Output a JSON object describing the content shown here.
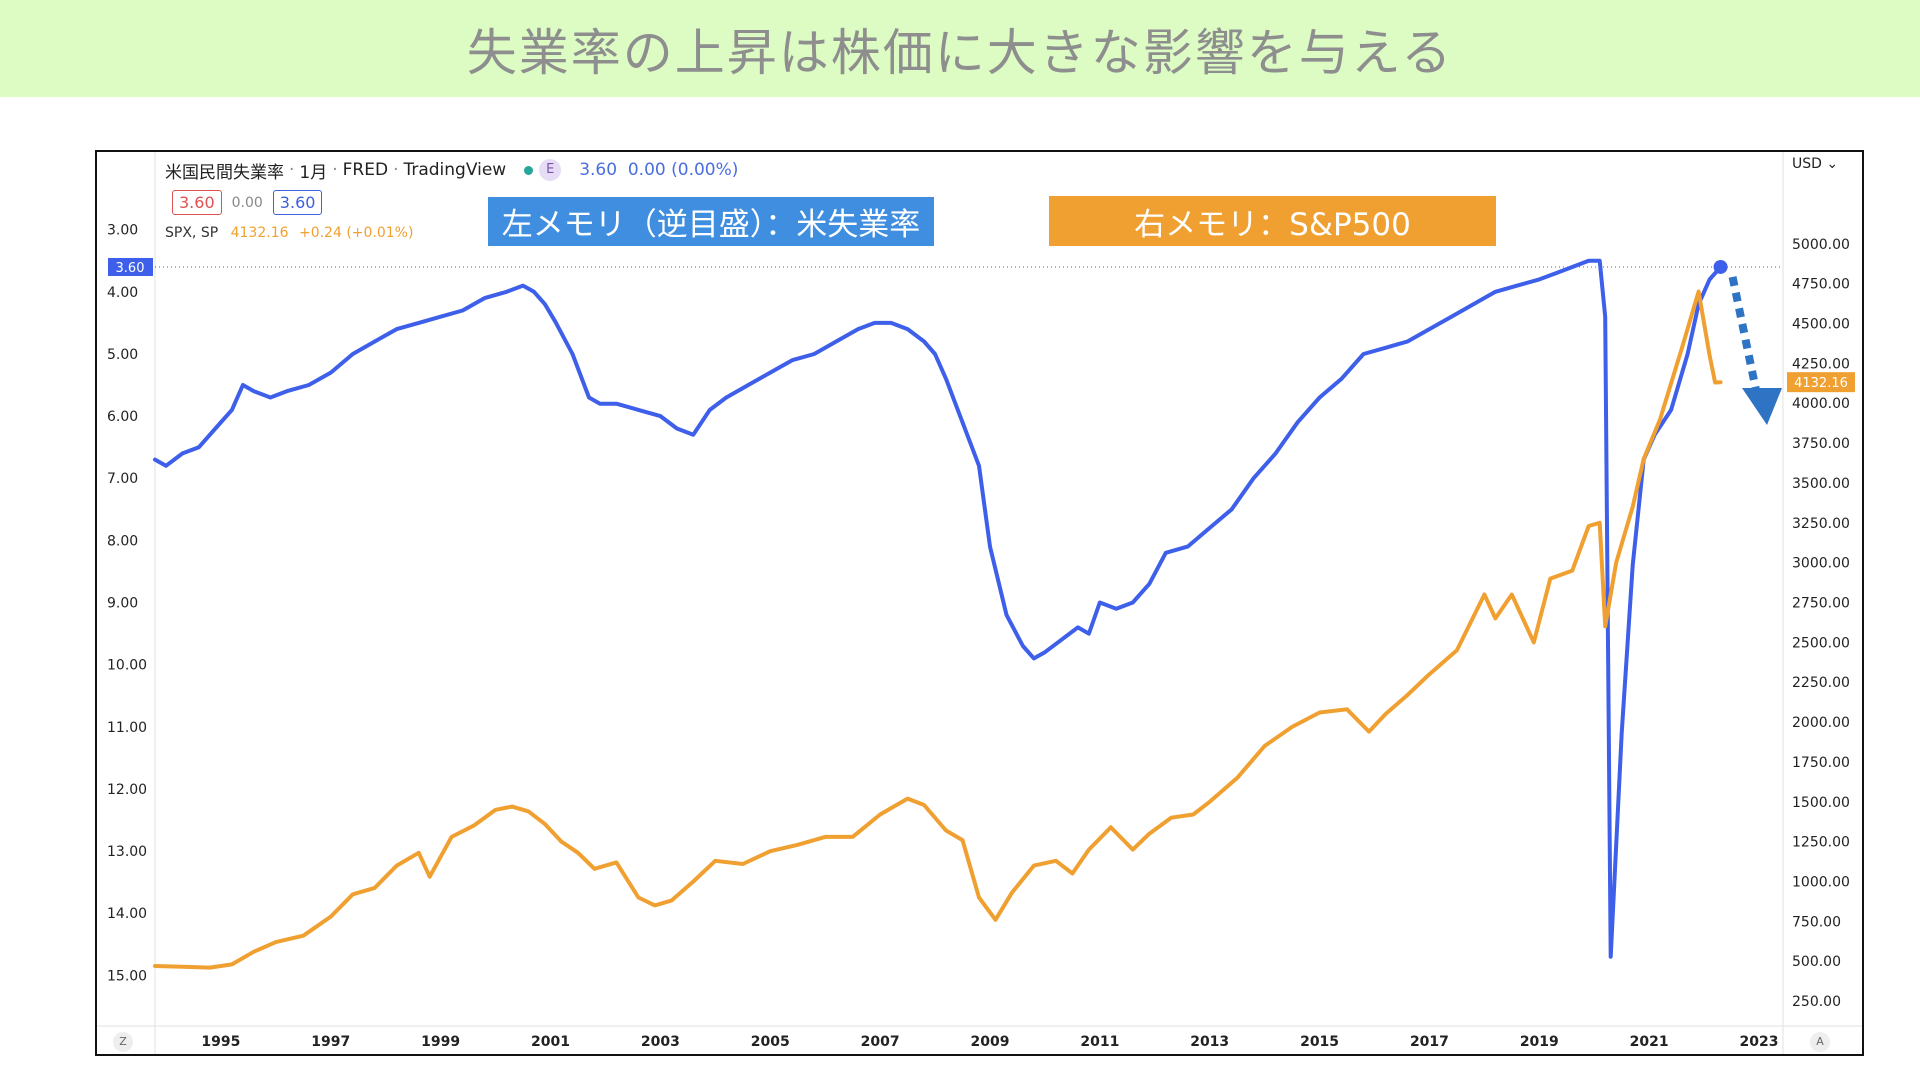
{
  "banner": {
    "title": "失業率の上昇は株価に大きな影響を与える"
  },
  "header": {
    "symbol_name": "米国民間失業率",
    "interval": "1月",
    "source": "FRED",
    "platform": "TradingView",
    "badge": "E",
    "value": "3.60",
    "change": "0.00 (0.00%)",
    "box_red": "3.60",
    "box_mid": "0.00",
    "box_blue": "3.60"
  },
  "spx": {
    "symbol": "SPX, SP",
    "price": "4132.16",
    "change": "+0.24 (+0.01%)"
  },
  "memos": {
    "left": "左メモリ（逆目盛）：米失業率",
    "right": "右メモリ：S&P500"
  },
  "axis": {
    "currency": "USD",
    "corner_left": "Z",
    "corner_right": "A"
  },
  "colors": {
    "unemployment": "#3d5fe9",
    "spx": "#f0a030",
    "arrow": "#2f73c4",
    "banner": "#dcfcc4"
  },
  "chart_data": {
    "type": "line",
    "x_ticks": [
      "1995",
      "1997",
      "1999",
      "2001",
      "2003",
      "2005",
      "2007",
      "2009",
      "2011",
      "2013",
      "2015",
      "2017",
      "2019",
      "2021",
      "2023"
    ],
    "xlim": [
      1993.8,
      2023.4
    ],
    "left_axis": {
      "inverted": true,
      "ylim": [
        2.2,
        15.8
      ],
      "ticks": [
        "3.00",
        "4.00",
        "5.00",
        "6.00",
        "7.00",
        "8.00",
        "9.00",
        "10.00",
        "11.00",
        "12.00",
        "13.00",
        "14.00",
        "15.00"
      ],
      "last_value_label": "3.60"
    },
    "right_axis": {
      "ylim": [
        100,
        5400
      ],
      "ticks": [
        "250.00",
        "500.00",
        "750.00",
        "1000.00",
        "1250.00",
        "1500.00",
        "1750.00",
        "2000.00",
        "2250.00",
        "2500.00",
        "2750.00",
        "3000.00",
        "3250.00",
        "3500.00",
        "3750.00",
        "4000.00",
        "4250.00",
        "4500.00",
        "4750.00",
        "5000.00"
      ],
      "last_value_label": "4132.16"
    },
    "grid": false,
    "series": [
      {
        "name": "米国民間失業率",
        "axis": "left",
        "x": [
          1993.8,
          1994.0,
          1994.3,
          1994.6,
          1994.9,
          1995.2,
          1995.4,
          1995.6,
          1995.9,
          1996.2,
          1996.6,
          1997.0,
          1997.4,
          1997.8,
          1998.2,
          1998.6,
          1999.0,
          1999.4,
          1999.8,
          2000.2,
          2000.5,
          2000.7,
          2000.9,
          2001.1,
          2001.4,
          2001.7,
          2001.9,
          2002.2,
          2002.6,
          2003.0,
          2003.3,
          2003.6,
          2003.9,
          2004.2,
          2004.6,
          2005.0,
          2005.4,
          2005.8,
          2006.2,
          2006.6,
          2006.9,
          2007.2,
          2007.5,
          2007.8,
          2008.0,
          2008.2,
          2008.5,
          2008.8,
          2009.0,
          2009.3,
          2009.6,
          2009.8,
          2010.0,
          2010.3,
          2010.6,
          2010.8,
          2011.0,
          2011.3,
          2011.6,
          2011.9,
          2012.2,
          2012.6,
          2013.0,
          2013.4,
          2013.8,
          2014.2,
          2014.6,
          2015.0,
          2015.4,
          2015.8,
          2016.2,
          2016.6,
          2017.0,
          2017.4,
          2017.8,
          2018.2,
          2018.6,
          2019.0,
          2019.3,
          2019.6,
          2019.9,
          2020.1,
          2020.2,
          2020.3,
          2020.5,
          2020.7,
          2020.9,
          2021.1,
          2021.4,
          2021.7,
          2021.9,
          2022.1,
          2022.3
        ],
        "y": [
          6.7,
          6.8,
          6.6,
          6.5,
          6.2,
          5.9,
          5.5,
          5.6,
          5.7,
          5.6,
          5.5,
          5.3,
          5.0,
          4.8,
          4.6,
          4.5,
          4.4,
          4.3,
          4.1,
          4.0,
          3.9,
          4.0,
          4.2,
          4.5,
          5.0,
          5.7,
          5.8,
          5.8,
          5.9,
          6.0,
          6.2,
          6.3,
          5.9,
          5.7,
          5.5,
          5.3,
          5.1,
          5.0,
          4.8,
          4.6,
          4.5,
          4.5,
          4.6,
          4.8,
          5.0,
          5.4,
          6.1,
          6.8,
          8.1,
          9.2,
          9.7,
          9.9,
          9.8,
          9.6,
          9.4,
          9.5,
          9.0,
          9.1,
          9.0,
          8.7,
          8.2,
          8.1,
          7.8,
          7.5,
          7.0,
          6.6,
          6.1,
          5.7,
          5.4,
          5.0,
          4.9,
          4.8,
          4.6,
          4.4,
          4.2,
          4.0,
          3.9,
          3.8,
          3.7,
          3.6,
          3.5,
          3.5,
          4.4,
          14.7,
          11.1,
          8.4,
          6.7,
          6.3,
          5.9,
          5.0,
          4.2,
          3.8,
          3.6
        ]
      },
      {
        "name": "S&P500",
        "axis": "right",
        "x": [
          1993.8,
          1994.3,
          1994.8,
          1995.2,
          1995.6,
          1996.0,
          1996.5,
          1997.0,
          1997.4,
          1997.8,
          1998.2,
          1998.6,
          1998.8,
          1999.2,
          1999.6,
          2000.0,
          2000.3,
          2000.6,
          2000.9,
          2001.2,
          2001.5,
          2001.8,
          2002.2,
          2002.6,
          2002.9,
          2003.2,
          2003.6,
          2004.0,
          2004.5,
          2005.0,
          2005.5,
          2006.0,
          2006.5,
          2007.0,
          2007.5,
          2007.8,
          2008.2,
          2008.5,
          2008.8,
          2009.1,
          2009.4,
          2009.8,
          2010.2,
          2010.5,
          2010.8,
          2011.2,
          2011.6,
          2011.9,
          2012.3,
          2012.7,
          2013.0,
          2013.5,
          2014.0,
          2014.5,
          2015.0,
          2015.5,
          2015.9,
          2016.2,
          2016.6,
          2017.0,
          2017.5,
          2018.0,
          2018.2,
          2018.5,
          2018.9,
          2019.2,
          2019.6,
          2019.9,
          2020.1,
          2020.2,
          2020.4,
          2020.7,
          2020.9,
          2021.2,
          2021.6,
          2021.9,
          2022.0,
          2022.1,
          2022.2,
          2022.3
        ],
        "y": [
          470,
          465,
          460,
          480,
          560,
          620,
          660,
          780,
          920,
          960,
          1100,
          1180,
          1030,
          1280,
          1350,
          1450,
          1470,
          1440,
          1360,
          1250,
          1180,
          1080,
          1120,
          900,
          850,
          880,
          1000,
          1130,
          1110,
          1190,
          1230,
          1280,
          1280,
          1420,
          1520,
          1480,
          1320,
          1260,
          900,
          760,
          930,
          1100,
          1130,
          1050,
          1200,
          1340,
          1200,
          1300,
          1400,
          1420,
          1500,
          1650,
          1850,
          1970,
          2060,
          2080,
          1940,
          2050,
          2170,
          2300,
          2450,
          2800,
          2650,
          2800,
          2500,
          2900,
          2950,
          3230,
          3250,
          2600,
          3000,
          3350,
          3650,
          3900,
          4350,
          4700,
          4500,
          4300,
          4130,
          4132
        ]
      }
    ]
  }
}
